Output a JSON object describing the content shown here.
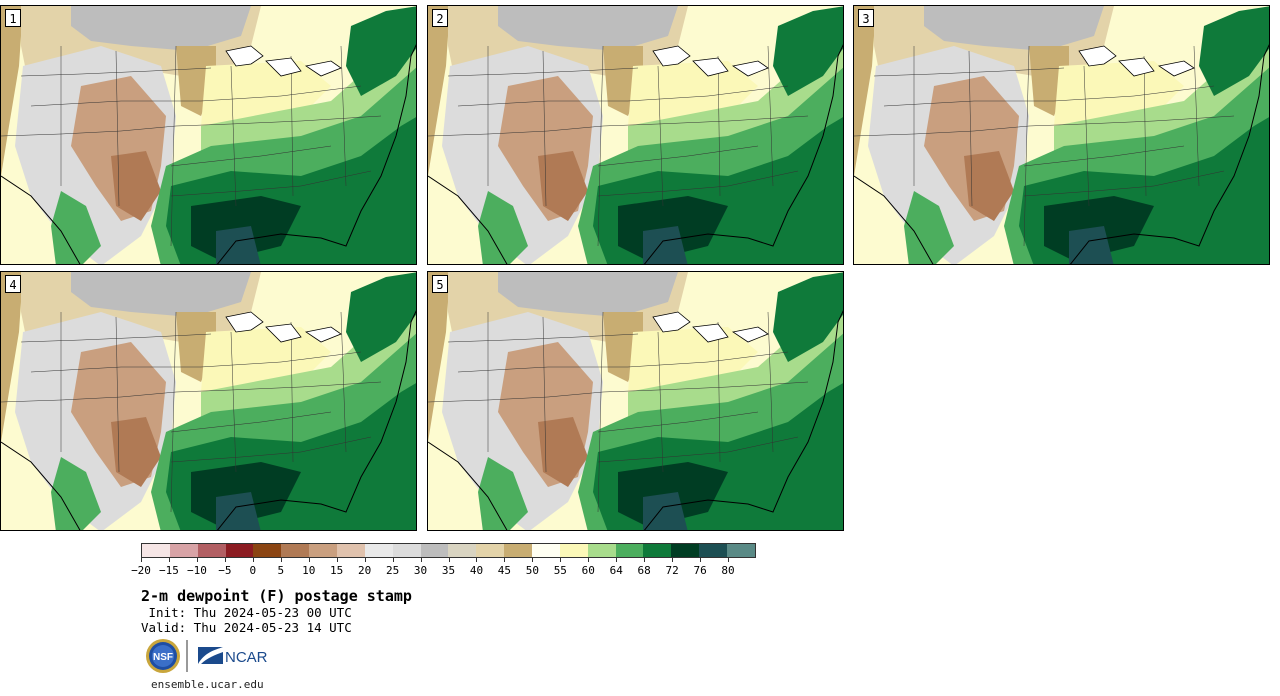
{
  "panels": [
    {
      "label": "1"
    },
    {
      "label": "2"
    },
    {
      "label": "3"
    },
    {
      "label": "4"
    },
    {
      "label": "5"
    }
  ],
  "colorbar": {
    "colors": [
      "#f6e6e6",
      "#d8a3a6",
      "#b25f63",
      "#8c1c22",
      "#8b4513",
      "#b07a55",
      "#c99f7f",
      "#e0c2ad",
      "#e9e9e9",
      "#dcdcdc",
      "#bdbdbd",
      "#d9d4c1",
      "#e3d3a9",
      "#c8ad72",
      "#fffff2",
      "#fbf8b8",
      "#a8dc8c",
      "#4cae5e",
      "#0f7a3a",
      "#003d23",
      "#1d4f53",
      "#5a8a86"
    ],
    "ticks": [
      "−20",
      "−15",
      "−10",
      "−5",
      "0",
      "5",
      "10",
      "15",
      "20",
      "25",
      "30",
      "35",
      "40",
      "45",
      "50",
      "55",
      "60",
      "64",
      "68",
      "72",
      "76",
      "80"
    ]
  },
  "title": "2-m dewpoint (F) postage stamp",
  "init_text": " Init: Thu 2024-05-23 00 UTC",
  "valid_text": "Valid: Thu 2024-05-23 14 UTC",
  "logos": {
    "nsf_text": "NSF",
    "ncar_text": "NCAR"
  },
  "url": "ensemble.ucar.edu"
}
